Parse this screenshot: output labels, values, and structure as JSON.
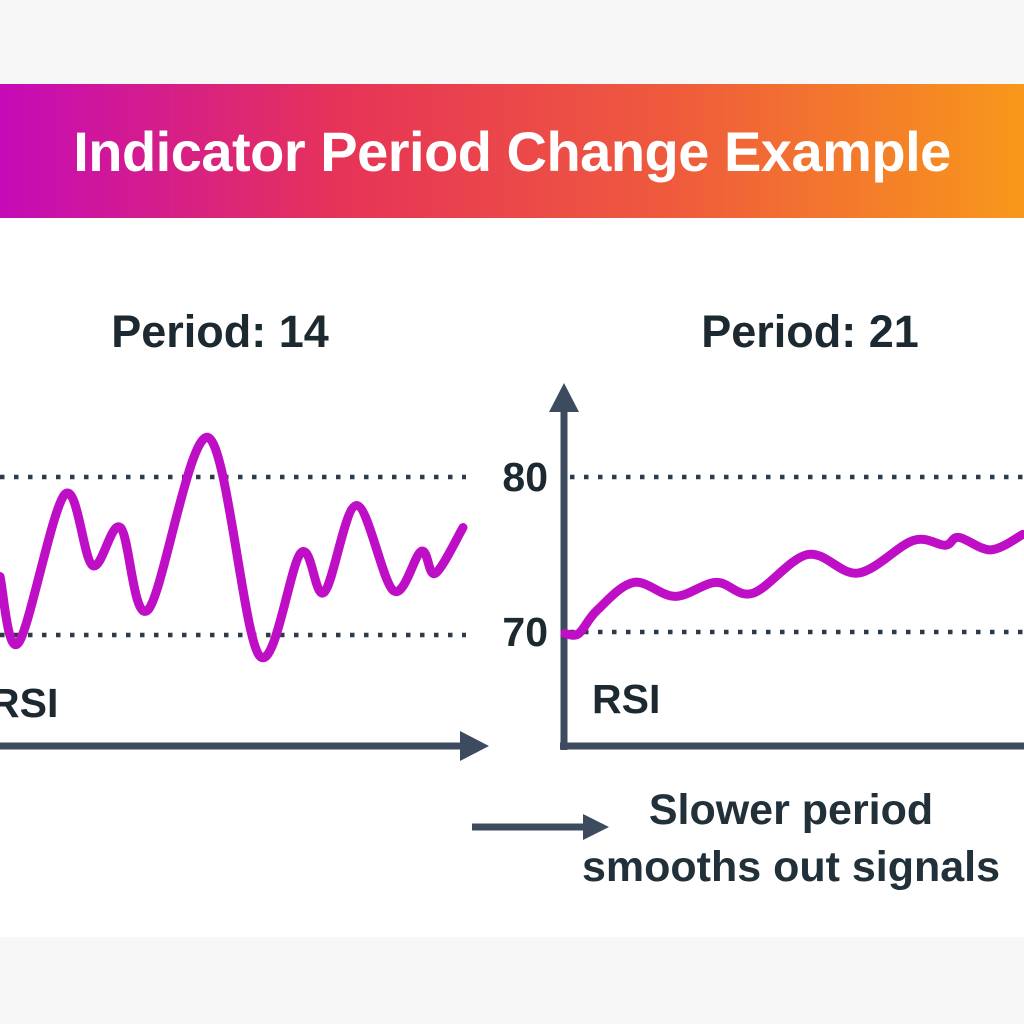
{
  "header": {
    "title": "Indicator Period Change Example",
    "gradient_colors": [
      "#c50ab8",
      "#e63358",
      "#ef5b3c",
      "#f8981b"
    ]
  },
  "annotation": {
    "line1": "Slower period",
    "line2": "smooths out signals"
  },
  "colors": {
    "line_magenta": "#be0fc6",
    "axis_slate": "#3d4b5e",
    "dotted_line": "#2d3b49",
    "text_dark": "#1d2930",
    "band_offwhite": "#f7f7f8",
    "content_white": "#ffffff"
  },
  "chart_data": [
    {
      "type": "line",
      "title": "Period: 14",
      "series_label": "RSI",
      "line_color": "#be0fc6",
      "thresholds": [
        70,
        80
      ],
      "threshold_labels_shown": false,
      "x_percent": [
        0,
        4,
        14,
        20,
        26,
        32,
        45,
        56,
        65,
        70,
        77,
        85,
        91,
        94,
        100
      ],
      "rsi_values": [
        73.7,
        69.5,
        78.9,
        74.4,
        76.8,
        71.6,
        82.5,
        68.7,
        75.2,
        72.7,
        78.2,
        72.8,
        75.3,
        73.9,
        76.8
      ],
      "grid": "dotted-horizontal",
      "legend": "none"
    },
    {
      "type": "line",
      "title": "Period: 21",
      "series_label": "RSI",
      "line_color": "#be0fc6",
      "thresholds": [
        70,
        80
      ],
      "threshold_labels_shown": true,
      "axis_ticks": [
        "80",
        "70"
      ],
      "x_percent": [
        0,
        3,
        7,
        15,
        24,
        33,
        41,
        53,
        64,
        76,
        83,
        86,
        93,
        100
      ],
      "rsi_values": [
        69.9,
        69.9,
        71.4,
        73.2,
        72.3,
        73.2,
        72.5,
        75.0,
        73.8,
        75.9,
        75.6,
        76.1,
        75.3,
        76.3
      ],
      "grid": "dotted-horizontal",
      "legend": "none"
    }
  ]
}
